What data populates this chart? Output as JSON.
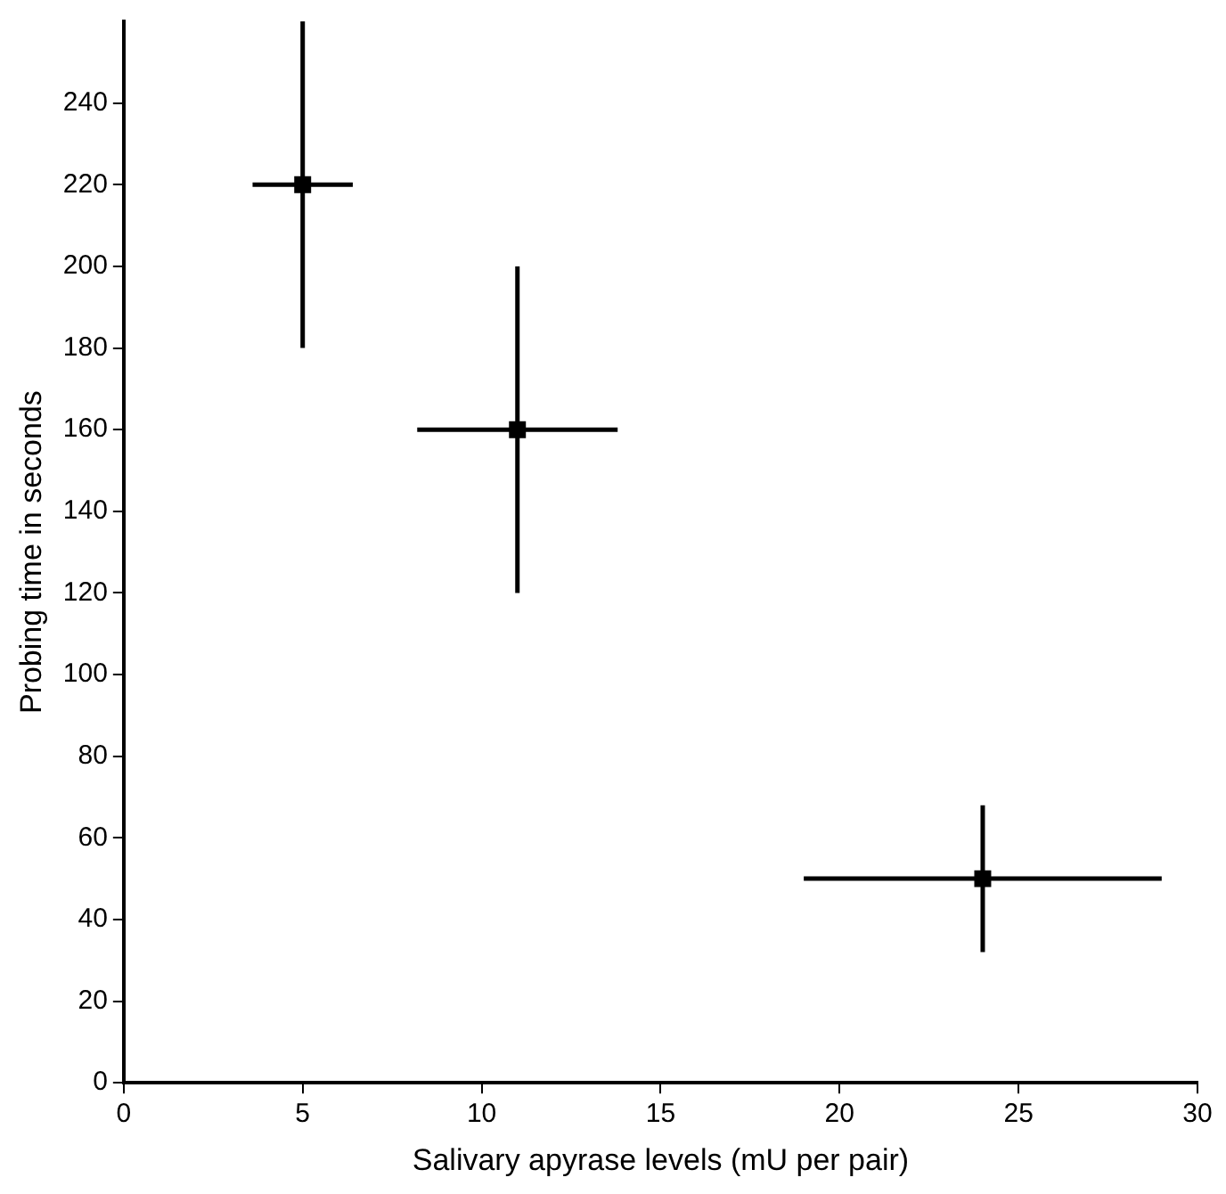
{
  "chart_data": {
    "type": "scatter",
    "xlabel": "Salivary apyrase levels (mU per pair)",
    "ylabel": "Probing time in seconds",
    "x": [
      5,
      11,
      24
    ],
    "values": [
      220,
      160,
      50
    ],
    "color": "#000000",
    "marker": "square",
    "errors": [
      40,
      40,
      18
    ],
    "xerrors": [
      1.4,
      2.8,
      5
    ],
    "xlim": [
      0,
      30
    ],
    "xticks": [
      0,
      5,
      10,
      15,
      20,
      25,
      30
    ],
    "ylim": [
      0,
      260
    ],
    "yticks": [
      0,
      20,
      40,
      60,
      80,
      100,
      120,
      140,
      160,
      180,
      200,
      220,
      240
    ],
    "grid": false,
    "legend": false
  }
}
